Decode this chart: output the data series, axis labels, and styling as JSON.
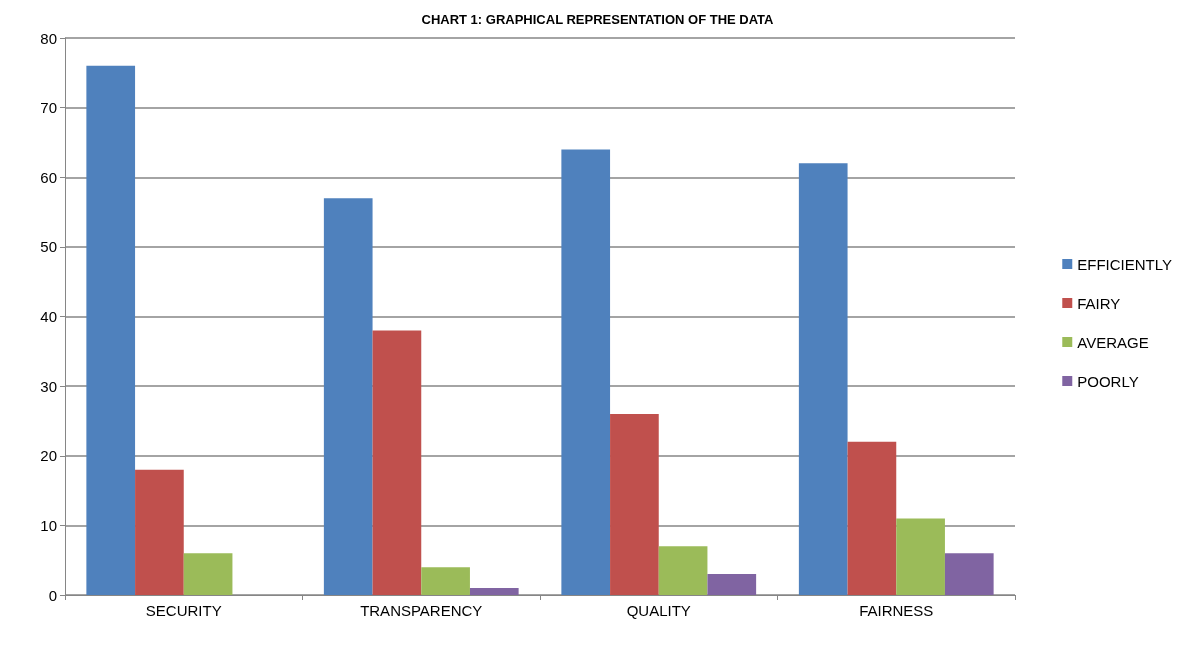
{
  "chart_data": {
    "type": "bar",
    "title": "CHART 1: GRAPHICAL REPRESENTATION OF THE DATA",
    "categories": [
      "SECURITY",
      "TRANSPARENCY",
      "QUALITY",
      "FAIRNESS"
    ],
    "series": [
      {
        "name": "EFFICIENTLY",
        "color": "#4f81bd",
        "values": [
          76,
          57,
          64,
          62
        ]
      },
      {
        "name": "FAIRY",
        "color": "#c0504d",
        "values": [
          18,
          38,
          26,
          22
        ]
      },
      {
        "name": "AVERAGE",
        "color": "#9bbb59",
        "values": [
          6,
          4,
          7,
          11
        ]
      },
      {
        "name": "POORLY",
        "color": "#8064a2",
        "values": [
          0,
          1,
          3,
          6
        ]
      }
    ],
    "ylim": [
      0,
      80
    ],
    "yticks": [
      0,
      10,
      20,
      30,
      40,
      50,
      60,
      70,
      80
    ],
    "grid": "y",
    "legend": "right"
  }
}
